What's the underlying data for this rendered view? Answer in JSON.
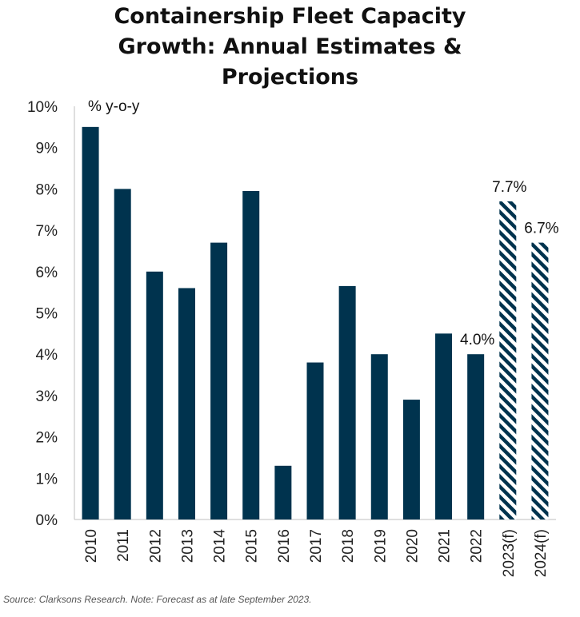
{
  "chart_data": {
    "type": "bar",
    "title_lines": [
      "Containership Fleet Capacity",
      "Growth: Annual Estimates &",
      "Projections"
    ],
    "unit_label": "% y-o-y",
    "categories": [
      "2010",
      "2011",
      "2012",
      "2013",
      "2014",
      "2015",
      "2016",
      "2017",
      "2018",
      "2019",
      "2020",
      "2021",
      "2022",
      "2023(f)",
      "2024(f)"
    ],
    "values": [
      9.5,
      8.0,
      6.0,
      5.6,
      6.7,
      7.95,
      1.3,
      3.8,
      5.65,
      4.0,
      2.9,
      4.5,
      4.0,
      7.7,
      6.7
    ],
    "forecast": [
      false,
      false,
      false,
      false,
      false,
      false,
      false,
      false,
      false,
      false,
      false,
      false,
      false,
      true,
      true
    ],
    "data_labels": [
      {
        "index": 12,
        "text": "4.0%"
      },
      {
        "index": 13,
        "text": "7.7%"
      },
      {
        "index": 14,
        "text": "6.7%"
      }
    ],
    "ylim": [
      0,
      10
    ],
    "y_ticks": [
      "0%",
      "1%",
      "2%",
      "3%",
      "4%",
      "5%",
      "6%",
      "7%",
      "8%",
      "9%",
      "10%"
    ],
    "grid": false,
    "colors": {
      "bar": "#00334e",
      "hatch": "#00334e"
    }
  },
  "source": "Source: Clarksons Research. Note: Forecast as at late September 2023."
}
